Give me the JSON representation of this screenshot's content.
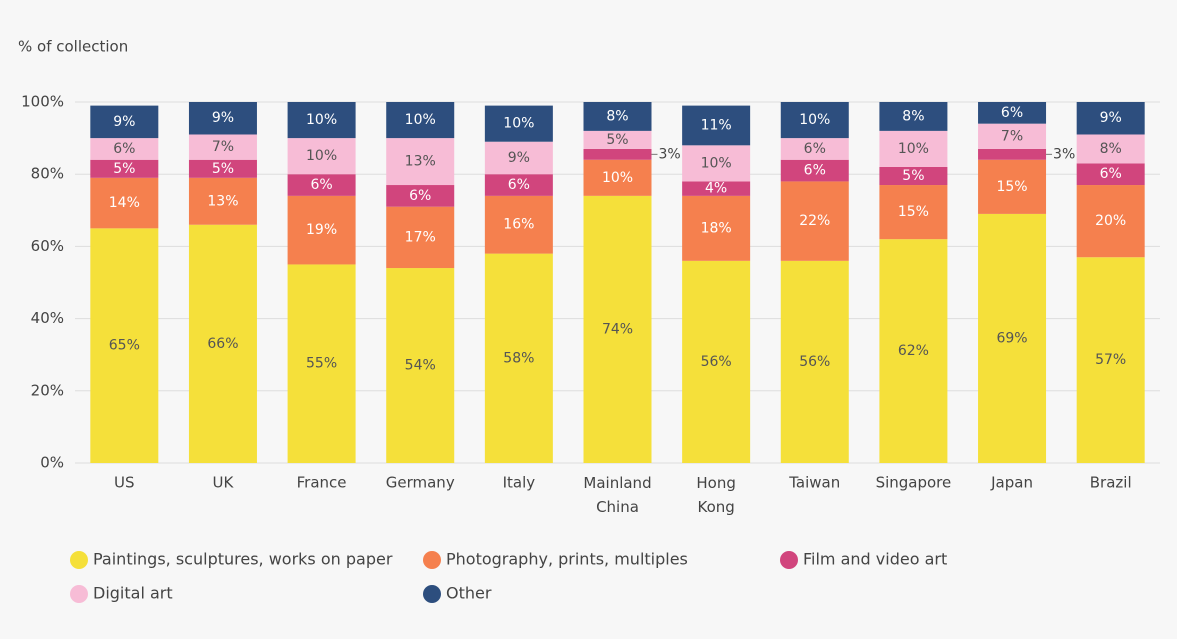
{
  "chart_data": {
    "type": "bar",
    "stacked": true,
    "y_axis_label": "% of collection",
    "categories": [
      "US",
      "UK",
      "France",
      "Germany",
      "Italy",
      "Mainland China",
      "Hong Kong",
      "Taiwan",
      "Singapore",
      "Japan",
      "Brazil"
    ],
    "series": [
      {
        "name": "Paintings, sculptures, works on paper",
        "color": "#f5e03a",
        "label_color": "#555555",
        "values": [
          65,
          66,
          55,
          54,
          58,
          74,
          56,
          56,
          62,
          69,
          57
        ],
        "value_labels": [
          "65%",
          "66%",
          "55%",
          "54%",
          "58%",
          "74%",
          "56%",
          "56%",
          "62%",
          "69%",
          "57%"
        ]
      },
      {
        "name": "Photography, prints, multiples",
        "color": "#f5804e",
        "label_color": "#ffffff",
        "values": [
          14,
          13,
          19,
          17,
          16,
          10,
          18,
          22,
          15,
          15,
          20
        ],
        "value_labels": [
          "14%",
          "13%",
          "19%",
          "17%",
          "16%",
          "10%",
          "18%",
          "22%",
          "15%",
          "15%",
          "20%"
        ]
      },
      {
        "name": "Film and video art",
        "color": "#d1457d",
        "label_color": "#ffffff",
        "values": [
          5,
          5,
          6,
          6,
          6,
          3,
          4,
          6,
          5,
          3,
          6
        ],
        "value_labels": [
          "5%",
          "5%",
          "6%",
          "6%",
          "6%",
          "3%",
          "4%",
          "6%",
          "5%",
          "3%",
          "6%"
        ]
      },
      {
        "name": "Digital art",
        "color": "#f7bcd6",
        "label_color": "#555555",
        "values": [
          6,
          7,
          10,
          13,
          9,
          5,
          10,
          6,
          10,
          7,
          8
        ],
        "value_labels": [
          "6%",
          "7%",
          "10%",
          "13%",
          "9%",
          "5%",
          "10%",
          "6%",
          "10%",
          "7%",
          "8%"
        ]
      },
      {
        "name": "Other",
        "color": "#2d4e7e",
        "label_color": "#ffffff",
        "values": [
          9,
          9,
          10,
          10,
          10,
          8,
          11,
          10,
          8,
          6,
          9
        ],
        "value_labels": [
          "9%",
          "9%",
          "10%",
          "10%",
          "10%",
          "8%",
          "11%",
          "10%",
          "8%",
          "6%",
          "9%"
        ]
      }
    ],
    "ylim": [
      0,
      100
    ],
    "yticks": [
      {
        "value": 0,
        "label": "0%"
      },
      {
        "value": 20,
        "label": "20%"
      },
      {
        "value": 40,
        "label": "40%"
      },
      {
        "value": 60,
        "label": "60%"
      },
      {
        "value": 80,
        "label": "80%"
      },
      {
        "value": 100,
        "label": "100%"
      }
    ],
    "grid": true,
    "legend": "bottom"
  }
}
